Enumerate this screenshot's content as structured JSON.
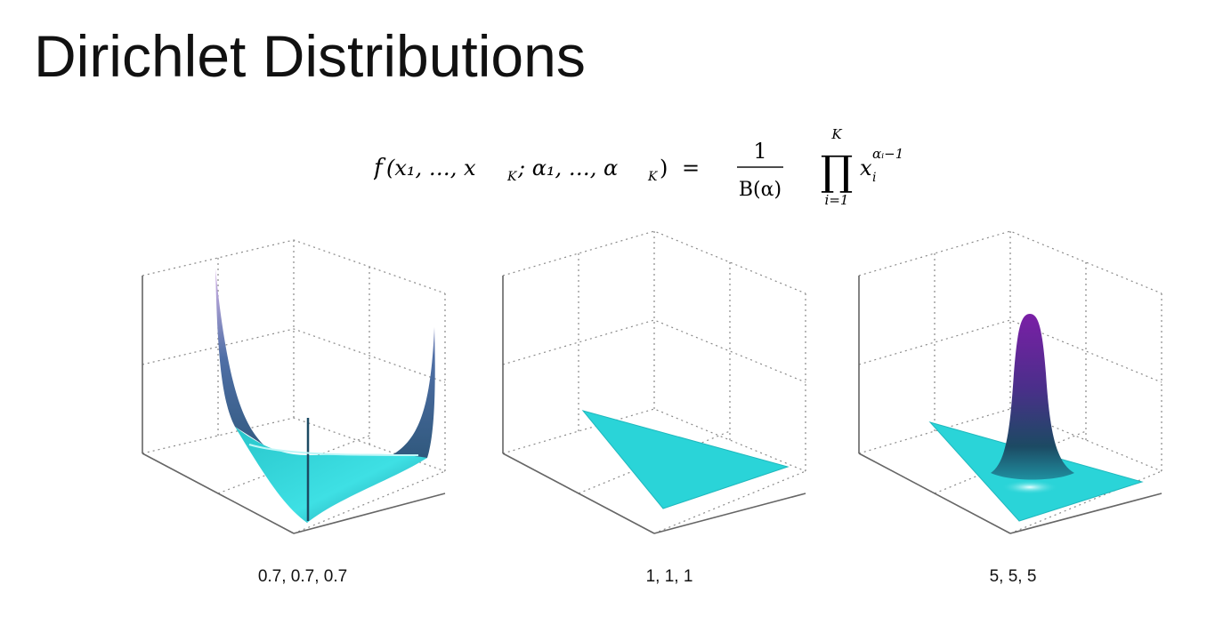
{
  "slide": {
    "title": "Dirichlet Distributions"
  },
  "formula": {
    "lhs_f": "f",
    "lhs_args": "(x₁, …, x",
    "lhs_sub_K": "K",
    "lhs_args2": "; α₁, …, α",
    "lhs_sub_K2": "K",
    "lhs_close": ")",
    "equals": "=",
    "numerator": "1",
    "denominator": "B(α)",
    "product_symbol": "∏",
    "product_upper": "K",
    "product_lower": "i=1",
    "base": "x",
    "base_sub": "i",
    "exponent": "αᵢ−1"
  },
  "plots": [
    {
      "caption": "0.7, 0.7, 0.7",
      "alpha": [
        0.7,
        0.7,
        0.7
      ],
      "shape": "bowl"
    },
    {
      "caption": "1, 1, 1",
      "alpha": [
        1,
        1,
        1
      ],
      "shape": "flat"
    },
    {
      "caption": "5, 5, 5",
      "alpha": [
        5,
        5,
        5
      ],
      "shape": "peak"
    }
  ],
  "colors": {
    "surface_cyan": "#2ad4d8",
    "surface_dark": "#1c4a63",
    "surface_peak": "#7a1fa6",
    "grid": "#8a8a8a",
    "axis": "#666666"
  }
}
